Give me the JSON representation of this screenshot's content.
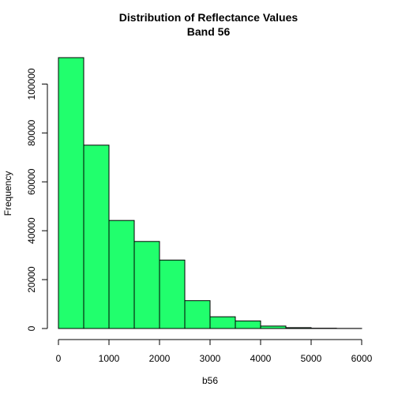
{
  "chart_data": {
    "type": "bar",
    "title": "Distribution of Reflectance Values",
    "subtitle": "Band 56",
    "xlabel": "b56",
    "ylabel": "Frequency",
    "bar_color": "#21FF6D",
    "bin_edges": [
      0,
      500,
      1000,
      1500,
      2000,
      2500,
      3000,
      3500,
      4000,
      4500,
      5000,
      5500,
      6000
    ],
    "values": [
      110800,
      75000,
      44200,
      35600,
      28000,
      11400,
      4800,
      3100,
      1000,
      350,
      120,
      40
    ],
    "xlim": [
      0,
      6000
    ],
    "ylim": [
      0,
      110800
    ],
    "x_ticks": [
      0,
      1000,
      2000,
      3000,
      4000,
      5000,
      6000
    ],
    "y_ticks": [
      0,
      20000,
      40000,
      60000,
      80000,
      100000
    ],
    "grid": false
  }
}
